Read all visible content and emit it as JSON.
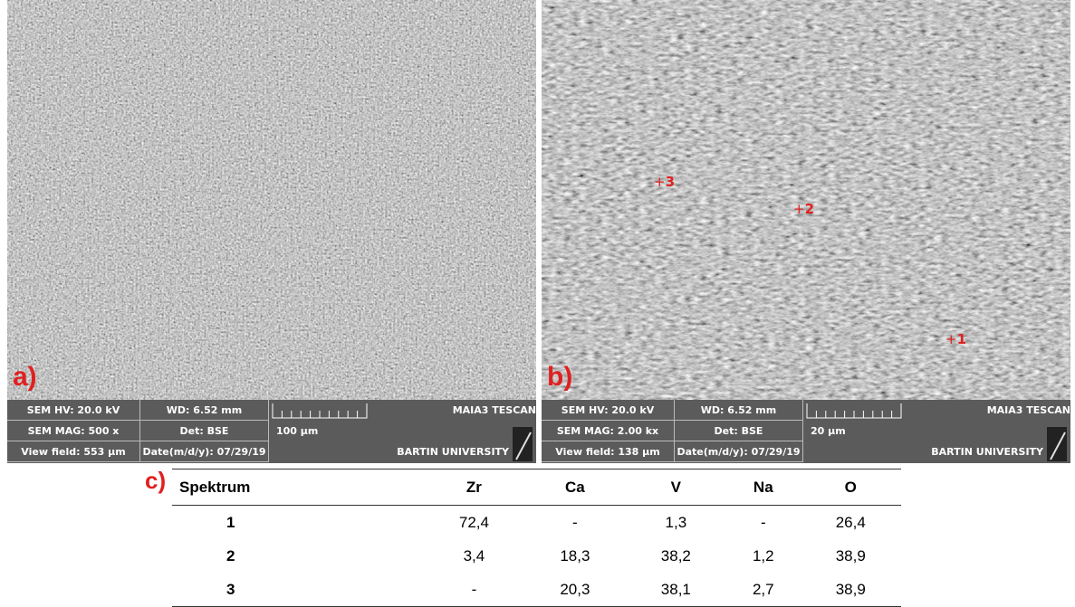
{
  "panels": [
    {
      "label": "a)",
      "info": {
        "hv": "SEM HV: 20.0 kV",
        "wd": "WD: 6.52 mm",
        "brand": "MAIA3 TESCAN",
        "mag": "SEM MAG: 500 x",
        "det": "Det: BSE",
        "scale": "100 μm",
        "field": "View field: 553 μm",
        "date": "Date(m/d/y): 07/29/19",
        "univ": "BARTIN UNIVERSITY"
      }
    },
    {
      "label": "b)",
      "info": {
        "hv": "SEM HV: 20.0 kV",
        "wd": "WD: 6.52 mm",
        "brand": "MAIA3 TESCAN",
        "mag": "SEM MAG: 2.00 kx",
        "det": "Det: BSE",
        "scale": "20 μm",
        "field": "View field: 138 μm",
        "date": "Date(m/d/y): 07/29/19",
        "univ": "BARTIN UNIVERSITY"
      },
      "markers": [
        "3",
        "2",
        "1"
      ]
    }
  ],
  "table": {
    "label": "c)",
    "header": [
      "Spektrum",
      "Zr",
      "Ca",
      "V",
      "Na",
      "O"
    ],
    "rows": [
      [
        "1",
        "72,4",
        "-",
        "1,3",
        "-",
        "26,4"
      ],
      [
        "2",
        "3,4",
        "18,3",
        "38,2",
        "1,2",
        "38,9"
      ],
      [
        "3",
        "-",
        "20,3",
        "38,1",
        "2,7",
        "38,9"
      ]
    ]
  }
}
